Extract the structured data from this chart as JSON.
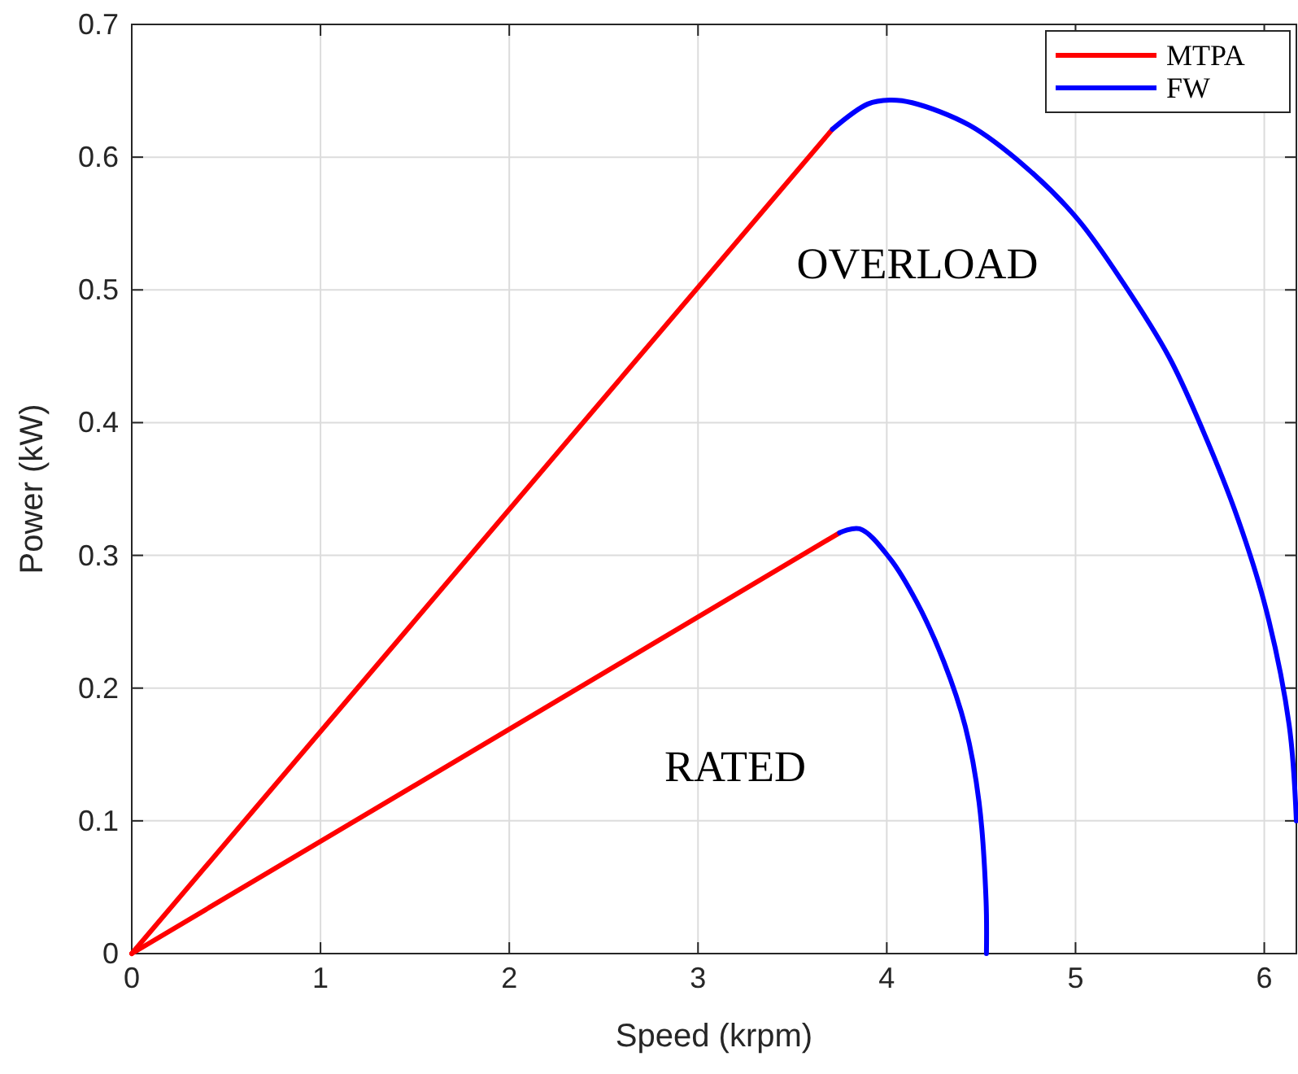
{
  "chart_data": {
    "type": "line",
    "xlabel": "Speed (krpm)",
    "ylabel": "Power (kW)",
    "xlim": [
      0,
      6.17
    ],
    "ylim": [
      0,
      0.7
    ],
    "xticks": [
      0,
      1,
      2,
      3,
      4,
      5,
      6
    ],
    "yticks": [
      0,
      0.1,
      0.2,
      0.3,
      0.4,
      0.5,
      0.6,
      0.7
    ],
    "grid": true,
    "legend": "top right",
    "series": [
      {
        "name": "MTPA",
        "color": "#ff0000",
        "x": [
          0,
          3.712
        ],
        "values": [
          0,
          0.621
        ]
      },
      {
        "name": "FW",
        "color": "#0000ff",
        "x": [
          3.712,
          3.899,
          4.015,
          4.135,
          4.438,
          4.74,
          5.013,
          5.254,
          5.497,
          5.678,
          5.859,
          6.01,
          6.132,
          6.17
        ],
        "values": [
          0.621,
          0.64,
          0.643,
          0.641,
          0.624,
          0.592,
          0.553,
          0.505,
          0.449,
          0.393,
          0.328,
          0.259,
          0.172,
          0.1
        ]
      },
      {
        "color": "#ff0000",
        "x": [
          0,
          3.75
        ],
        "values": [
          0,
          0.317
        ]
      },
      {
        "color": "#0000ff",
        "x": [
          3.75,
          3.856,
          4.015,
          4.158,
          4.302,
          4.416,
          4.489,
          4.526,
          4.528
        ],
        "values": [
          0.317,
          0.32,
          0.298,
          0.265,
          0.22,
          0.171,
          0.114,
          0.04,
          0
        ]
      }
    ],
    "annotations": [
      "OVERLOAD",
      "RATED"
    ]
  }
}
